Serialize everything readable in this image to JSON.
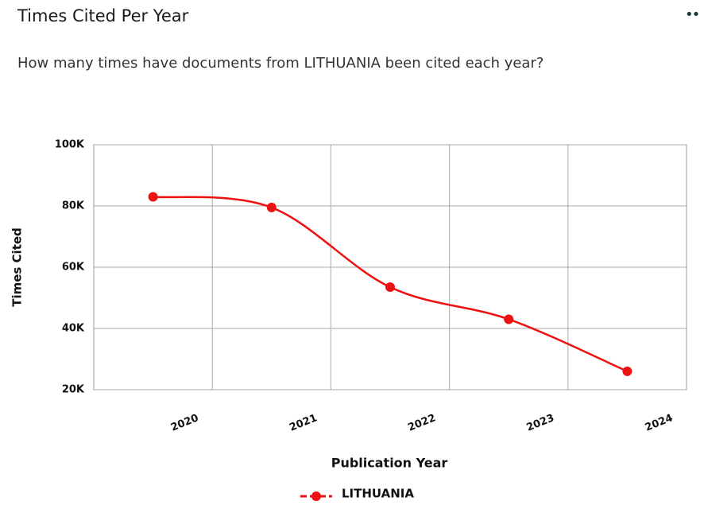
{
  "chart_data": {
    "type": "line",
    "title": "Times Cited Per Year",
    "subtitle": "How many times have documents from LITHUANIA been cited each year?",
    "x_label": "Publication Year",
    "y_label": "Times Cited",
    "categories": [
      "2020",
      "2021",
      "2022",
      "2023",
      "2024"
    ],
    "series": [
      {
        "name": "LITHUANIA",
        "color": "#ee1111",
        "values": [
          83000,
          79500,
          53500,
          43000,
          26000
        ]
      }
    ],
    "ylim": [
      20000,
      100000
    ],
    "yticks": [
      {
        "value": 20000,
        "label": "20K"
      },
      {
        "value": 40000,
        "label": "40K"
      },
      {
        "value": 60000,
        "label": "60K"
      },
      {
        "value": 80000,
        "label": "80K"
      },
      {
        "value": 100000,
        "label": "100K"
      }
    ],
    "grid": true,
    "legend": "bottom"
  }
}
